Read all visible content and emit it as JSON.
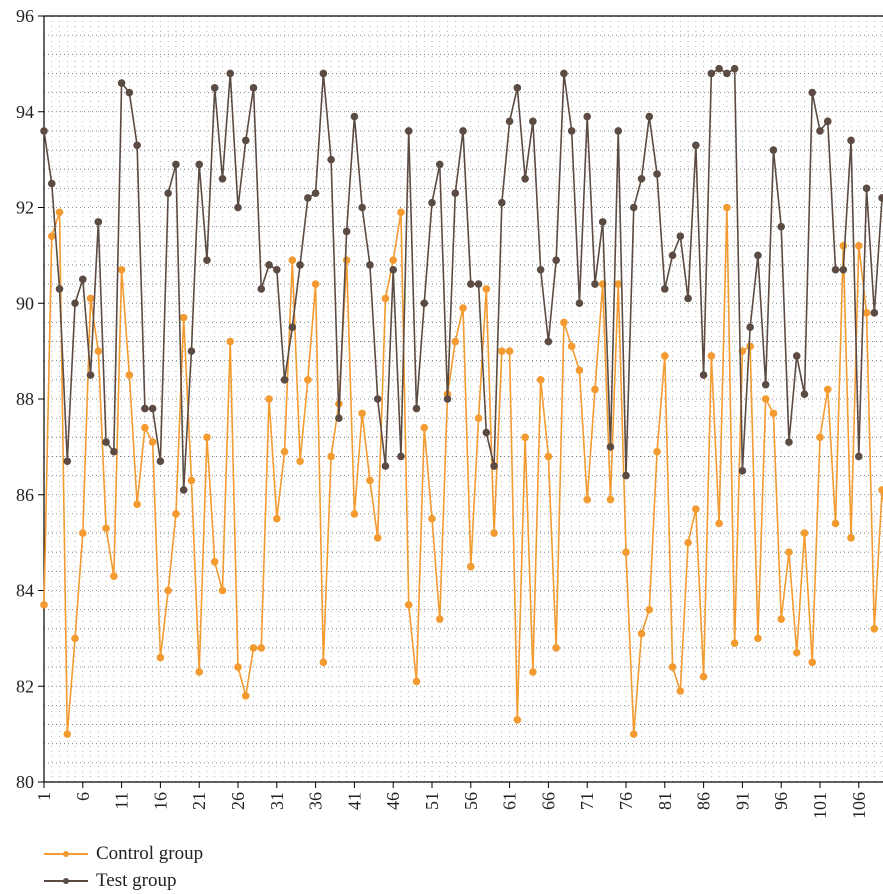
{
  "chart_data": {
    "type": "line",
    "title": "",
    "xlabel": "",
    "ylabel": "",
    "ylim": [
      80,
      96
    ],
    "yticks": [
      "80",
      "82",
      "84",
      "86",
      "88",
      "90",
      "92",
      "94",
      "96"
    ],
    "xticks": [
      "1",
      "6",
      "11",
      "16",
      "21",
      "26",
      "31",
      "36",
      "41",
      "46",
      "51",
      "56",
      "61",
      "66",
      "71",
      "76",
      "81",
      "86",
      "91",
      "96",
      "101",
      "106"
    ],
    "x_start": 1,
    "grid": true,
    "legend_position": "bottom-left",
    "colors": {
      "control": "#F39B30",
      "test": "#5B4B43"
    },
    "series": [
      {
        "name": "Control group",
        "values": [
          83.7,
          91.4,
          91.9,
          81.0,
          83.0,
          85.2,
          90.1,
          89.0,
          85.3,
          84.3,
          90.7,
          88.5,
          85.8,
          87.4,
          87.1,
          82.6,
          84.0,
          85.6,
          89.7,
          86.3,
          82.3,
          87.2,
          84.6,
          84.0,
          89.2,
          82.4,
          81.8,
          82.8,
          82.8,
          88.0,
          85.5,
          86.9,
          90.9,
          86.7,
          88.4,
          90.4,
          82.5,
          86.8,
          87.9,
          90.9,
          85.6,
          87.7,
          86.3,
          85.1,
          90.1,
          90.9,
          91.9,
          83.7,
          82.1,
          87.4,
          85.5,
          83.4,
          88.1,
          89.2,
          89.9,
          84.5,
          87.6,
          90.3,
          85.2,
          89.0,
          89.0,
          81.3,
          87.2,
          82.3,
          88.4,
          86.8,
          82.8,
          89.6,
          89.1,
          88.6,
          85.9,
          88.2,
          90.4,
          85.9,
          90.4,
          84.8,
          81.0,
          83.1,
          83.6,
          86.9,
          88.9,
          82.4,
          81.9,
          85.0,
          85.7,
          82.2,
          88.9,
          85.4,
          92.0,
          82.9,
          89.0,
          89.1,
          83.0,
          88.0,
          87.7,
          83.4,
          84.8,
          82.7,
          85.2,
          82.5,
          87.2,
          88.2,
          85.4,
          91.2,
          85.1,
          91.2,
          89.8,
          83.2,
          86.1,
          84.9
        ]
      },
      {
        "name": "Test group",
        "values": [
          93.6,
          92.5,
          90.3,
          86.7,
          90.0,
          90.5,
          88.5,
          91.7,
          87.1,
          86.9,
          94.6,
          94.4,
          93.3,
          87.8,
          87.8,
          86.7,
          92.3,
          92.9,
          86.1,
          89.0,
          92.9,
          90.9,
          94.5,
          92.6,
          94.8,
          92.0,
          93.4,
          94.5,
          90.3,
          90.8,
          90.7,
          88.4,
          89.5,
          90.8,
          92.2,
          92.3,
          94.8,
          93.0,
          87.6,
          91.5,
          93.9,
          92.0,
          90.8,
          88.0,
          86.6,
          90.7,
          86.8,
          93.6,
          87.8,
          90.0,
          92.1,
          92.9,
          88.0,
          92.3,
          93.6,
          90.4,
          90.4,
          87.3,
          86.6,
          92.1,
          93.8,
          94.5,
          92.6,
          93.8,
          90.7,
          89.2,
          90.9,
          94.8,
          93.6,
          90.0,
          93.9,
          90.4,
          91.7,
          87.0,
          93.6,
          86.4,
          92.0,
          92.6,
          93.9,
          92.7,
          90.3,
          91.0,
          91.4,
          90.1,
          93.3,
          88.5,
          94.8,
          94.9,
          94.8,
          94.9,
          86.5,
          89.5,
          91.0,
          88.3,
          93.2,
          91.6,
          87.1,
          88.9,
          88.1,
          94.4,
          93.6,
          93.8,
          90.7,
          90.7,
          93.4,
          86.8,
          92.4,
          89.8,
          92.2,
          91.9
        ]
      }
    ]
  }
}
